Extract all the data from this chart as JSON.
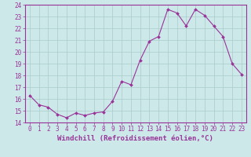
{
  "x": [
    0,
    1,
    2,
    3,
    4,
    5,
    6,
    7,
    8,
    9,
    10,
    11,
    12,
    13,
    14,
    15,
    16,
    17,
    18,
    19,
    20,
    21,
    22,
    23
  ],
  "y": [
    16.3,
    15.5,
    15.3,
    14.7,
    14.4,
    14.8,
    14.6,
    14.8,
    14.9,
    15.8,
    17.5,
    17.2,
    19.3,
    20.9,
    21.3,
    23.6,
    23.3,
    22.2,
    23.6,
    23.1,
    22.2,
    21.3,
    19.0,
    18.1
  ],
  "line_color": "#993399",
  "marker_color": "#993399",
  "bg_color": "#cce8e8",
  "grid_color": "#aacccc",
  "xlabel": "Windchill (Refroidissement éolien,°C)",
  "ylim": [
    14,
    24
  ],
  "xlim": [
    -0.5,
    23.5
  ],
  "yticks": [
    14,
    15,
    16,
    17,
    18,
    19,
    20,
    21,
    22,
    23,
    24
  ],
  "xticks": [
    0,
    1,
    2,
    3,
    4,
    5,
    6,
    7,
    8,
    9,
    10,
    11,
    12,
    13,
    14,
    15,
    16,
    17,
    18,
    19,
    20,
    21,
    22,
    23
  ],
  "tick_color": "#993399",
  "axis_color": "#993399",
  "tick_fontsize": 5.5,
  "xlabel_fontsize": 6.5
}
